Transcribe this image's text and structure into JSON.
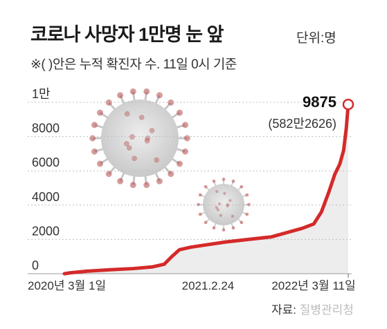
{
  "header": {
    "title": "코로나 사망자 1만명 눈 앞",
    "unit": "단위:명",
    "note": "※( )안은 누적 확진자 수. 11일 0시 기준"
  },
  "source": {
    "label": "자료: ",
    "value": "질병관리청"
  },
  "colors": {
    "line": "#d42a2a",
    "area": "#ebebeb",
    "grid": "#bcbcbc",
    "virus": "#d7d7d7"
  },
  "chart_data": {
    "type": "area",
    "ylim": [
      0,
      10000
    ],
    "y_ticks": [
      {
        "value": 0,
        "label": "0"
      },
      {
        "value": 2000,
        "label": "2000"
      },
      {
        "value": 4000,
        "label": "4000"
      },
      {
        "value": 6000,
        "label": "6000"
      },
      {
        "value": 8000,
        "label": "8000"
      },
      {
        "value": 10000,
        "label": "1만"
      }
    ],
    "x_ticks": [
      {
        "x": 0,
        "label": "2020년 3월 1일"
      },
      {
        "x": 360,
        "label": "2021.2.24"
      },
      {
        "x": 740,
        "label": "2022년 3월 11일"
      }
    ],
    "series": [
      {
        "points": [
          [
            0,
            0
          ],
          [
            15,
            50
          ],
          [
            60,
            150
          ],
          [
            120,
            230
          ],
          [
            180,
            300
          ],
          [
            230,
            400
          ],
          [
            260,
            550
          ],
          [
            280,
            1000
          ],
          [
            300,
            1400
          ],
          [
            330,
            1550
          ],
          [
            360,
            1650
          ],
          [
            420,
            1850
          ],
          [
            480,
            2000
          ],
          [
            540,
            2150
          ],
          [
            580,
            2400
          ],
          [
            620,
            2650
          ],
          [
            650,
            2900
          ],
          [
            670,
            3600
          ],
          [
            690,
            4800
          ],
          [
            705,
            5800
          ],
          [
            718,
            6400
          ],
          [
            728,
            7200
          ],
          [
            735,
            8500
          ],
          [
            740,
            9875
          ]
        ]
      }
    ],
    "annotation": {
      "value_label": "9875",
      "sub_label": "(582만2626)"
    }
  }
}
